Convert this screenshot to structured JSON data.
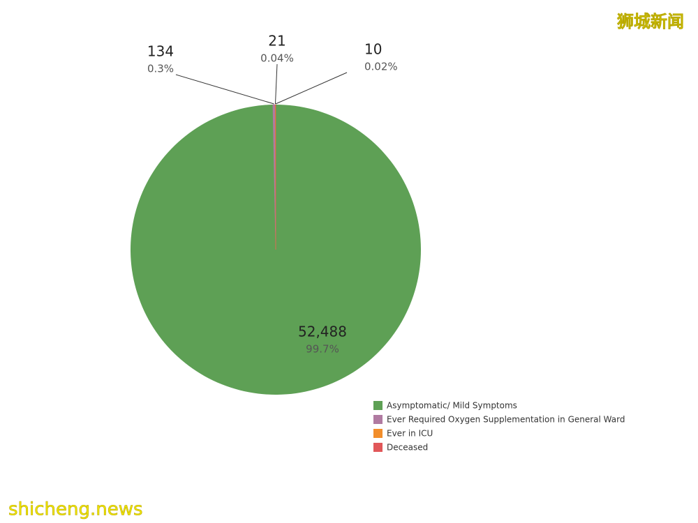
{
  "chart_data": {
    "type": "pie",
    "categories": [
      "Asymptomatic/ Mild Symptoms",
      "Ever Required Oxygen Supplementation in General Ward",
      "Ever in ICU",
      "Deceased"
    ],
    "values": [
      52488,
      134,
      21,
      10
    ],
    "value_labels": [
      "52,488",
      "134",
      "21",
      "10"
    ],
    "percent_labels": [
      "99.7%",
      "0.3%",
      "0.04%",
      "0.02%"
    ],
    "colors": [
      "#5ea055",
      "#b07aa1",
      "#f28e2b",
      "#e15759"
    ],
    "legend": "bottom-right"
  },
  "watermarks": {
    "top": "狮城新闻",
    "bottom": "shicheng.news"
  }
}
